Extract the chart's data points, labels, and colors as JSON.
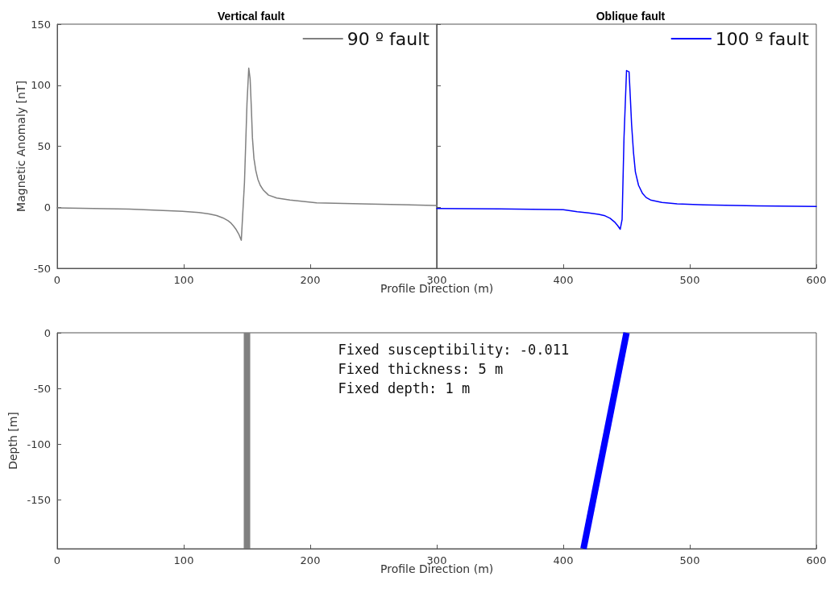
{
  "chart_data": [
    {
      "type": "line",
      "title": "Vertical fault",
      "xlabel": "Profile Direction (m)",
      "ylabel": "Magnetic Anomaly [nT]",
      "xlim": [
        0,
        300
      ],
      "xticks": [
        0,
        100,
        200,
        300
      ],
      "ylim": [
        -50,
        150
      ],
      "yticks": [
        -50,
        0,
        50,
        100,
        150
      ],
      "legend": "top right",
      "grid": false,
      "series": [
        {
          "name": "90 º fault",
          "color": "#808080",
          "x": [
            0,
            57,
            99,
            112,
            120,
            126,
            131,
            135,
            137.4,
            139.5,
            141.6,
            143.5,
            145.5,
            148,
            150,
            151.4,
            152.5,
            153.5,
            154.3,
            155.5,
            157,
            158.6,
            160.5,
            163,
            167,
            173.5,
            184,
            205,
            248,
            298,
            300
          ],
          "values": [
            -0.5,
            -1.5,
            -3.3,
            -4.3,
            -5.4,
            -6.8,
            -8.7,
            -11,
            -13,
            -15.5,
            -18.5,
            -22,
            -27,
            20,
            85,
            114,
            105,
            80,
            57,
            40,
            30,
            23,
            18,
            14,
            10,
            7.6,
            5.9,
            3.7,
            2.6,
            1.5,
            1.5
          ]
        }
      ]
    },
    {
      "type": "line",
      "title": "Oblique fault",
      "xlim": [
        300,
        600
      ],
      "xticks": [
        400,
        500,
        600
      ],
      "ylim": [
        -50,
        150
      ],
      "yticks": [
        -50,
        0,
        50,
        100,
        150
      ],
      "tick_labels": "x",
      "legend": "top right",
      "grid": false,
      "series": [
        {
          "name": "100 º fault",
          "color": "#0000ff",
          "x": [
            300,
            350,
            400,
            411,
            420,
            428,
            433,
            437,
            441,
            443,
            445,
            446.5,
            448,
            450,
            452,
            453,
            454,
            455.5,
            457,
            459.5,
            462.5,
            465.5,
            469,
            478,
            490,
            511,
            553,
            600
          ],
          "values": [
            -1,
            -1.3,
            -2,
            -3.7,
            -4.6,
            -5.8,
            -7,
            -9,
            -12.5,
            -15,
            -18,
            -10,
            57,
            112,
            111,
            90,
            68,
            45,
            29,
            18,
            11.6,
            8,
            6,
            4,
            2.8,
            2,
            1.1,
            0.7
          ]
        }
      ]
    },
    {
      "type": "line",
      "xlabel": "Profile Direction (m)",
      "ylabel": "Depth [m]",
      "xlim": [
        0,
        600
      ],
      "xticks": [
        0,
        100,
        200,
        300,
        400,
        500,
        600
      ],
      "ylim": [
        -194,
        0
      ],
      "yticks": [
        -150,
        -100,
        -50,
        0
      ],
      "grid": false,
      "annotations": [
        "Fixed susceptibility: -0.011",
        "Fixed thickness: 5 m",
        "Fixed depth: 1 m"
      ],
      "series": [
        {
          "color": "#808080",
          "x": [
            150,
            150
          ],
          "values": [
            0,
            -194
          ]
        },
        {
          "color": "#0000ff",
          "x": [
            450,
            416
          ],
          "values": [
            0,
            -194
          ]
        }
      ]
    }
  ]
}
